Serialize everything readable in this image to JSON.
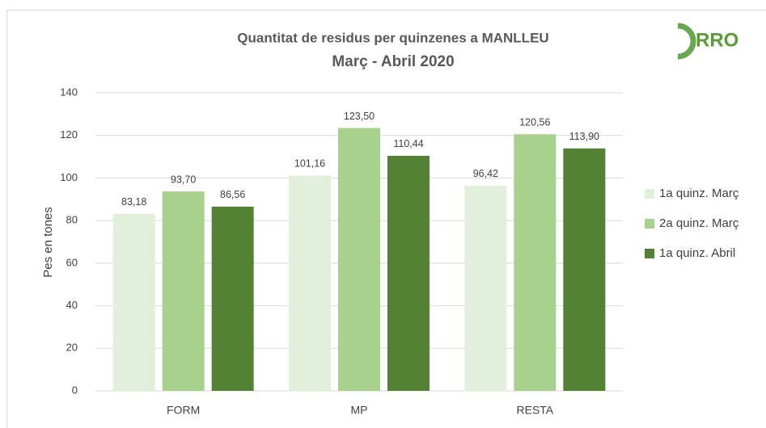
{
  "chart_data": {
    "type": "bar",
    "title": "Quantitat de residus per quinzenes a MANLLEU",
    "subtitle": "Març - Abril 2020",
    "logo": "RRO",
    "y_label": "Pes en tones",
    "categories": [
      "FORM",
      "MP",
      "RESTA"
    ],
    "series": [
      {
        "name": "1a quinz. Març",
        "color": "#e2efda",
        "values": [
          83.18,
          101.16,
          96.42
        ],
        "value_labels": [
          "83,18",
          "101,16",
          "96,42"
        ]
      },
      {
        "name": "2a quinz. Març",
        "color": "#a9d18e",
        "values": [
          93.7,
          123.5,
          120.56
        ],
        "value_labels": [
          "93,70",
          "123,50",
          "120,56"
        ]
      },
      {
        "name": "1a quinz. Abril",
        "color": "#548235",
        "values": [
          86.56,
          110.44,
          113.9
        ],
        "value_labels": [
          "86,56",
          "110,44",
          "113,90"
        ]
      }
    ],
    "ylim": [
      0,
      140
    ],
    "yticks": [
      0,
      20,
      40,
      60,
      80,
      100,
      120,
      140
    ],
    "grid": true,
    "legend": "right"
  }
}
